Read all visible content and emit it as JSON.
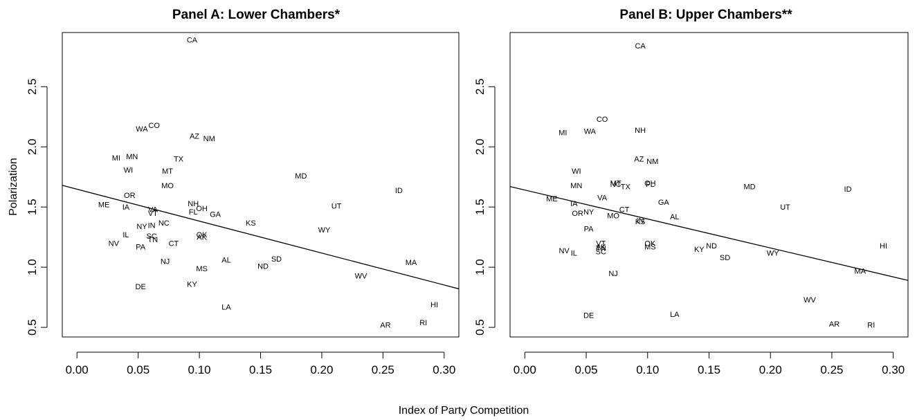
{
  "figure": {
    "xlabel": "Index of Party Competition",
    "ylabel": "Polarization"
  },
  "chart_data": [
    {
      "type": "scatter",
      "title": "Panel A: Lower Chambers*",
      "xlim": [
        -0.012,
        0.312
      ],
      "ylim": [
        0.42,
        2.95
      ],
      "xticks": [
        "0.00",
        "0.05",
        "0.10",
        "0.15",
        "0.20",
        "0.25",
        "0.30"
      ],
      "yticks": [
        "0.5",
        "1.0",
        "1.5",
        "2.0",
        "2.5"
      ],
      "fit_line": {
        "x": [
          -0.012,
          0.312
        ],
        "y": [
          1.68,
          0.82
        ]
      },
      "points": [
        {
          "label": "CA",
          "x": 0.094,
          "y": 2.89
        },
        {
          "label": "WA",
          "x": 0.053,
          "y": 2.15
        },
        {
          "label": "CO",
          "x": 0.063,
          "y": 2.18
        },
        {
          "label": "AZ",
          "x": 0.096,
          "y": 2.09
        },
        {
          "label": "NM",
          "x": 0.108,
          "y": 2.07
        },
        {
          "label": "MI",
          "x": 0.032,
          "y": 1.91
        },
        {
          "label": "MN",
          "x": 0.045,
          "y": 1.92
        },
        {
          "label": "TX",
          "x": 0.083,
          "y": 1.9
        },
        {
          "label": "WI",
          "x": 0.042,
          "y": 1.81
        },
        {
          "label": "MT",
          "x": 0.074,
          "y": 1.8
        },
        {
          "label": "MD",
          "x": 0.183,
          "y": 1.76
        },
        {
          "label": "MO",
          "x": 0.074,
          "y": 1.68
        },
        {
          "label": "ID",
          "x": 0.263,
          "y": 1.64
        },
        {
          "label": "OR",
          "x": 0.043,
          "y": 1.6
        },
        {
          "label": "ME",
          "x": 0.022,
          "y": 1.52
        },
        {
          "label": "IA",
          "x": 0.04,
          "y": 1.5
        },
        {
          "label": "NH",
          "x": 0.095,
          "y": 1.53
        },
        {
          "label": "UT",
          "x": 0.212,
          "y": 1.51
        },
        {
          "label": "OH",
          "x": 0.102,
          "y": 1.49
        },
        {
          "label": "VA",
          "x": 0.062,
          "y": 1.48
        },
        {
          "label": "VT",
          "x": 0.062,
          "y": 1.45
        },
        {
          "label": "FL",
          "x": 0.095,
          "y": 1.46
        },
        {
          "label": "GA",
          "x": 0.113,
          "y": 1.44
        },
        {
          "label": "KS",
          "x": 0.142,
          "y": 1.37
        },
        {
          "label": "NC",
          "x": 0.071,
          "y": 1.37
        },
        {
          "label": "NY",
          "x": 0.053,
          "y": 1.34
        },
        {
          "label": "IN",
          "x": 0.061,
          "y": 1.35
        },
        {
          "label": "WY",
          "x": 0.202,
          "y": 1.31
        },
        {
          "label": "IL",
          "x": 0.04,
          "y": 1.27
        },
        {
          "label": "SC",
          "x": 0.061,
          "y": 1.26
        },
        {
          "label": "OK",
          "x": 0.102,
          "y": 1.27
        },
        {
          "label": "AK",
          "x": 0.102,
          "y": 1.25
        },
        {
          "label": "TN",
          "x": 0.062,
          "y": 1.23
        },
        {
          "label": "NV",
          "x": 0.03,
          "y": 1.2
        },
        {
          "label": "CT",
          "x": 0.079,
          "y": 1.2
        },
        {
          "label": "PA",
          "x": 0.052,
          "y": 1.17
        },
        {
          "label": "SD",
          "x": 0.163,
          "y": 1.07
        },
        {
          "label": "AL",
          "x": 0.122,
          "y": 1.06
        },
        {
          "label": "NJ",
          "x": 0.072,
          "y": 1.05
        },
        {
          "label": "MA",
          "x": 0.273,
          "y": 1.04
        },
        {
          "label": "ND",
          "x": 0.152,
          "y": 1.01
        },
        {
          "label": "MS",
          "x": 0.102,
          "y": 0.99
        },
        {
          "label": "WV",
          "x": 0.232,
          "y": 0.93
        },
        {
          "label": "KY",
          "x": 0.094,
          "y": 0.86
        },
        {
          "label": "DE",
          "x": 0.052,
          "y": 0.84
        },
        {
          "label": "HI",
          "x": 0.292,
          "y": 0.69
        },
        {
          "label": "LA",
          "x": 0.122,
          "y": 0.67
        },
        {
          "label": "RI",
          "x": 0.283,
          "y": 0.54
        },
        {
          "label": "AR",
          "x": 0.252,
          "y": 0.52
        }
      ]
    },
    {
      "type": "scatter",
      "title": "Panel B: Upper Chambers**",
      "xlim": [
        -0.012,
        0.312
      ],
      "ylim": [
        0.42,
        2.95
      ],
      "xticks": [
        "0.00",
        "0.05",
        "0.10",
        "0.15",
        "0.20",
        "0.25",
        "0.30"
      ],
      "yticks": [
        "0.5",
        "1.0",
        "1.5",
        "2.0",
        "2.5"
      ],
      "fit_line": {
        "x": [
          -0.012,
          0.312
        ],
        "y": [
          1.67,
          0.89
        ]
      },
      "points": [
        {
          "label": "CA",
          "x": 0.094,
          "y": 2.84
        },
        {
          "label": "CO",
          "x": 0.063,
          "y": 2.23
        },
        {
          "label": "MI",
          "x": 0.031,
          "y": 2.12
        },
        {
          "label": "WA",
          "x": 0.053,
          "y": 2.13
        },
        {
          "label": "NH",
          "x": 0.094,
          "y": 2.14
        },
        {
          "label": "AZ",
          "x": 0.093,
          "y": 1.9
        },
        {
          "label": "NM",
          "x": 0.104,
          "y": 1.88
        },
        {
          "label": "WI",
          "x": 0.042,
          "y": 1.8
        },
        {
          "label": "MN",
          "x": 0.042,
          "y": 1.68
        },
        {
          "label": "MT",
          "x": 0.074,
          "y": 1.7
        },
        {
          "label": "NC",
          "x": 0.074,
          "y": 1.69
        },
        {
          "label": "OH",
          "x": 0.102,
          "y": 1.7
        },
        {
          "label": "FL",
          "x": 0.102,
          "y": 1.69
        },
        {
          "label": "TX",
          "x": 0.082,
          "y": 1.67
        },
        {
          "label": "MD",
          "x": 0.183,
          "y": 1.67
        },
        {
          "label": "ID",
          "x": 0.263,
          "y": 1.65
        },
        {
          "label": "VA",
          "x": 0.063,
          "y": 1.58
        },
        {
          "label": "ME",
          "x": 0.022,
          "y": 1.57
        },
        {
          "label": "GA",
          "x": 0.113,
          "y": 1.54
        },
        {
          "label": "IA",
          "x": 0.04,
          "y": 1.53
        },
        {
          "label": "UT",
          "x": 0.212,
          "y": 1.5
        },
        {
          "label": "CT",
          "x": 0.081,
          "y": 1.48
        },
        {
          "label": "NY",
          "x": 0.052,
          "y": 1.46
        },
        {
          "label": "OR",
          "x": 0.043,
          "y": 1.45
        },
        {
          "label": "MO",
          "x": 0.072,
          "y": 1.43
        },
        {
          "label": "AL",
          "x": 0.122,
          "y": 1.42
        },
        {
          "label": "IN",
          "x": 0.094,
          "y": 1.39
        },
        {
          "label": "KS",
          "x": 0.094,
          "y": 1.38
        },
        {
          "label": "PA",
          "x": 0.052,
          "y": 1.32
        },
        {
          "label": "OK",
          "x": 0.102,
          "y": 1.2
        },
        {
          "label": "VT",
          "x": 0.062,
          "y": 1.2
        },
        {
          "label": "HI",
          "x": 0.292,
          "y": 1.18
        },
        {
          "label": "ND",
          "x": 0.152,
          "y": 1.18
        },
        {
          "label": "MS",
          "x": 0.102,
          "y": 1.17
        },
        {
          "label": "AK",
          "x": 0.062,
          "y": 1.17
        },
        {
          "label": "TN",
          "x": 0.062,
          "y": 1.16
        },
        {
          "label": "KY",
          "x": 0.142,
          "y": 1.15
        },
        {
          "label": "NV",
          "x": 0.032,
          "y": 1.14
        },
        {
          "label": "SC",
          "x": 0.062,
          "y": 1.13
        },
        {
          "label": "IL",
          "x": 0.04,
          "y": 1.12
        },
        {
          "label": "WY",
          "x": 0.202,
          "y": 1.12
        },
        {
          "label": "SD",
          "x": 0.163,
          "y": 1.08
        },
        {
          "label": "MA",
          "x": 0.273,
          "y": 0.97
        },
        {
          "label": "NJ",
          "x": 0.072,
          "y": 0.95
        },
        {
          "label": "WV",
          "x": 0.232,
          "y": 0.73
        },
        {
          "label": "LA",
          "x": 0.122,
          "y": 0.61
        },
        {
          "label": "DE",
          "x": 0.052,
          "y": 0.6
        },
        {
          "label": "AR",
          "x": 0.252,
          "y": 0.53
        },
        {
          "label": "RI",
          "x": 0.282,
          "y": 0.52
        }
      ]
    }
  ]
}
